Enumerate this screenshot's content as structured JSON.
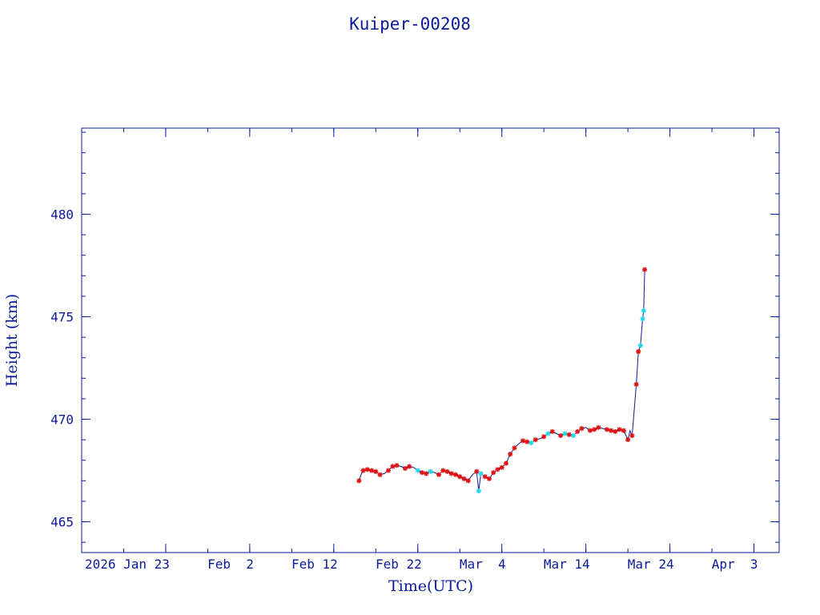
{
  "chart_data": {
    "type": "line",
    "title": "Kuiper-00208",
    "xlabel": "Time(UTC)",
    "ylabel": "Height (km)",
    "x_unit": "date",
    "xlim": [
      "2026-01-13",
      "2026-04-06"
    ],
    "ylim": [
      463.5,
      484.2
    ],
    "x_ticks": [
      {
        "date": "2026-01-23",
        "label": "2026 Jan 23"
      },
      {
        "date": "2026-02-02",
        "label": "Feb  2"
      },
      {
        "date": "2026-02-12",
        "label": "Feb 12"
      },
      {
        "date": "2026-02-22",
        "label": "Feb 22"
      },
      {
        "date": "2026-03-04",
        "label": "Mar  4"
      },
      {
        "date": "2026-03-14",
        "label": "Mar 14"
      },
      {
        "date": "2026-03-24",
        "label": "Mar 24"
      },
      {
        "date": "2026-04-03",
        "label": "Apr  3"
      }
    ],
    "y_ticks": [
      {
        "value": 465,
        "label": "465"
      },
      {
        "value": 470,
        "label": "470"
      },
      {
        "value": 475,
        "label": "475"
      },
      {
        "value": 480,
        "label": "480"
      }
    ],
    "grid": false,
    "colors": {
      "axis": "#0a1a9a",
      "line": "#0a1a9a",
      "marker_red": "#e01010",
      "marker_cyan": "#22d8ee"
    },
    "series": [
      {
        "style": "line",
        "points": [
          [
            "2026-02-15",
            467.0
          ],
          [
            "2026-02-15T06",
            467.3
          ],
          [
            "2026-02-15T12",
            467.5
          ],
          [
            "2026-02-16",
            467.55
          ],
          [
            "2026-02-16T12",
            467.5
          ],
          [
            "2026-02-17",
            467.45
          ],
          [
            "2026-02-17T12",
            467.3
          ],
          [
            "2026-02-18",
            467.35
          ],
          [
            "2026-02-18T12",
            467.5
          ],
          [
            "2026-02-19",
            467.7
          ],
          [
            "2026-02-19T12",
            467.75
          ],
          [
            "2026-02-20",
            467.7
          ],
          [
            "2026-02-20T12",
            467.6
          ],
          [
            "2026-02-21",
            467.7
          ],
          [
            "2026-02-21T12",
            467.65
          ],
          [
            "2026-02-22",
            467.5
          ],
          [
            "2026-02-22T12",
            467.4
          ],
          [
            "2026-02-23",
            467.35
          ],
          [
            "2026-02-23T12",
            467.45
          ],
          [
            "2026-02-24",
            467.4
          ],
          [
            "2026-02-24T12",
            467.3
          ],
          [
            "2026-02-25",
            467.5
          ],
          [
            "2026-02-25T12",
            467.45
          ],
          [
            "2026-02-26",
            467.35
          ],
          [
            "2026-02-26T12",
            467.3
          ],
          [
            "2026-02-27",
            467.2
          ],
          [
            "2026-02-27T12",
            467.1
          ],
          [
            "2026-02-28",
            467.0
          ],
          [
            "2026-02-28T12",
            467.3
          ],
          [
            "2026-03-01",
            467.45
          ],
          [
            "2026-03-01T06",
            466.5
          ],
          [
            "2026-03-01T12",
            467.35
          ],
          [
            "2026-03-02",
            467.2
          ],
          [
            "2026-03-02T12",
            467.1
          ],
          [
            "2026-03-03",
            467.4
          ],
          [
            "2026-03-03T12",
            467.55
          ],
          [
            "2026-03-04",
            467.65
          ],
          [
            "2026-03-04T12",
            467.85
          ],
          [
            "2026-03-05",
            468.3
          ],
          [
            "2026-03-05T12",
            468.6
          ],
          [
            "2026-03-06",
            468.8
          ],
          [
            "2026-03-06T12",
            468.95
          ],
          [
            "2026-03-07",
            468.9
          ],
          [
            "2026-03-07T12",
            468.85
          ],
          [
            "2026-03-08",
            469.0
          ],
          [
            "2026-03-08T12",
            469.05
          ],
          [
            "2026-03-09",
            469.15
          ],
          [
            "2026-03-09T12",
            469.3
          ],
          [
            "2026-03-10",
            469.4
          ],
          [
            "2026-03-10T12",
            469.3
          ],
          [
            "2026-03-11",
            469.2
          ],
          [
            "2026-03-11T12",
            469.3
          ],
          [
            "2026-03-12",
            469.25
          ],
          [
            "2026-03-12T12",
            469.2
          ],
          [
            "2026-03-13",
            469.4
          ],
          [
            "2026-03-13T12",
            469.55
          ],
          [
            "2026-03-14",
            469.6
          ],
          [
            "2026-03-14T12",
            469.45
          ],
          [
            "2026-03-15",
            469.5
          ],
          [
            "2026-03-15T12",
            469.6
          ],
          [
            "2026-03-16",
            469.55
          ],
          [
            "2026-03-16T12",
            469.5
          ],
          [
            "2026-03-17",
            469.45
          ],
          [
            "2026-03-17T12",
            469.4
          ],
          [
            "2026-03-18",
            469.5
          ],
          [
            "2026-03-18T12",
            469.45
          ],
          [
            "2026-03-19",
            469.0
          ],
          [
            "2026-03-19T06",
            469.45
          ],
          [
            "2026-03-19T12",
            469.2
          ],
          [
            "2026-03-20",
            471.7
          ],
          [
            "2026-03-20T06",
            473.3
          ],
          [
            "2026-03-20T12",
            473.6
          ],
          [
            "2026-03-20T18",
            474.9
          ],
          [
            "2026-03-20T21",
            475.3
          ],
          [
            "2026-03-21",
            477.3
          ]
        ]
      },
      {
        "style": "marker-red",
        "points": [
          [
            "2026-02-15",
            467.0
          ],
          [
            "2026-02-15T12",
            467.5
          ],
          [
            "2026-02-16",
            467.55
          ],
          [
            "2026-02-16T12",
            467.5
          ],
          [
            "2026-02-17",
            467.45
          ],
          [
            "2026-02-17T12",
            467.3
          ],
          [
            "2026-02-18T12",
            467.5
          ],
          [
            "2026-02-19",
            467.7
          ],
          [
            "2026-02-19T12",
            467.75
          ],
          [
            "2026-02-20T12",
            467.6
          ],
          [
            "2026-02-21",
            467.7
          ],
          [
            "2026-02-22T12",
            467.4
          ],
          [
            "2026-02-23",
            467.35
          ],
          [
            "2026-02-24T12",
            467.3
          ],
          [
            "2026-02-25",
            467.5
          ],
          [
            "2026-02-25T12",
            467.45
          ],
          [
            "2026-02-26",
            467.35
          ],
          [
            "2026-02-26T12",
            467.3
          ],
          [
            "2026-02-27",
            467.2
          ],
          [
            "2026-02-27T12",
            467.1
          ],
          [
            "2026-02-28",
            467.0
          ],
          [
            "2026-03-01",
            467.45
          ],
          [
            "2026-03-02",
            467.2
          ],
          [
            "2026-03-02T12",
            467.1
          ],
          [
            "2026-03-03",
            467.4
          ],
          [
            "2026-03-03T12",
            467.55
          ],
          [
            "2026-03-04",
            467.65
          ],
          [
            "2026-03-04T12",
            467.85
          ],
          [
            "2026-03-05",
            468.3
          ],
          [
            "2026-03-05T12",
            468.6
          ],
          [
            "2026-03-06T12",
            468.95
          ],
          [
            "2026-03-07",
            468.9
          ],
          [
            "2026-03-08",
            469.0
          ],
          [
            "2026-03-09",
            469.15
          ],
          [
            "2026-03-10",
            469.4
          ],
          [
            "2026-03-11",
            469.2
          ],
          [
            "2026-03-12",
            469.25
          ],
          [
            "2026-03-13",
            469.4
          ],
          [
            "2026-03-13T12",
            469.55
          ],
          [
            "2026-03-14T12",
            469.45
          ],
          [
            "2026-03-15",
            469.5
          ],
          [
            "2026-03-15T12",
            469.6
          ],
          [
            "2026-03-16T12",
            469.5
          ],
          [
            "2026-03-17",
            469.45
          ],
          [
            "2026-03-17T12",
            469.4
          ],
          [
            "2026-03-18",
            469.5
          ],
          [
            "2026-03-18T12",
            469.45
          ],
          [
            "2026-03-19",
            469.0
          ],
          [
            "2026-03-19T12",
            469.2
          ],
          [
            "2026-03-20",
            471.7
          ],
          [
            "2026-03-20T06",
            473.3
          ],
          [
            "2026-03-21",
            477.3
          ]
        ]
      },
      {
        "style": "marker-cyan",
        "points": [
          [
            "2026-02-22",
            467.5
          ],
          [
            "2026-02-23T12",
            467.45
          ],
          [
            "2026-03-01T06",
            466.5
          ],
          [
            "2026-03-01T12",
            467.35
          ],
          [
            "2026-03-07T12",
            468.85
          ],
          [
            "2026-03-09T12",
            469.3
          ],
          [
            "2026-03-11T12",
            469.3
          ],
          [
            "2026-03-12T12",
            469.2
          ],
          [
            "2026-03-20T12",
            473.6
          ],
          [
            "2026-03-20T18",
            474.9
          ],
          [
            "2026-03-20T21",
            475.3
          ]
        ]
      }
    ]
  }
}
